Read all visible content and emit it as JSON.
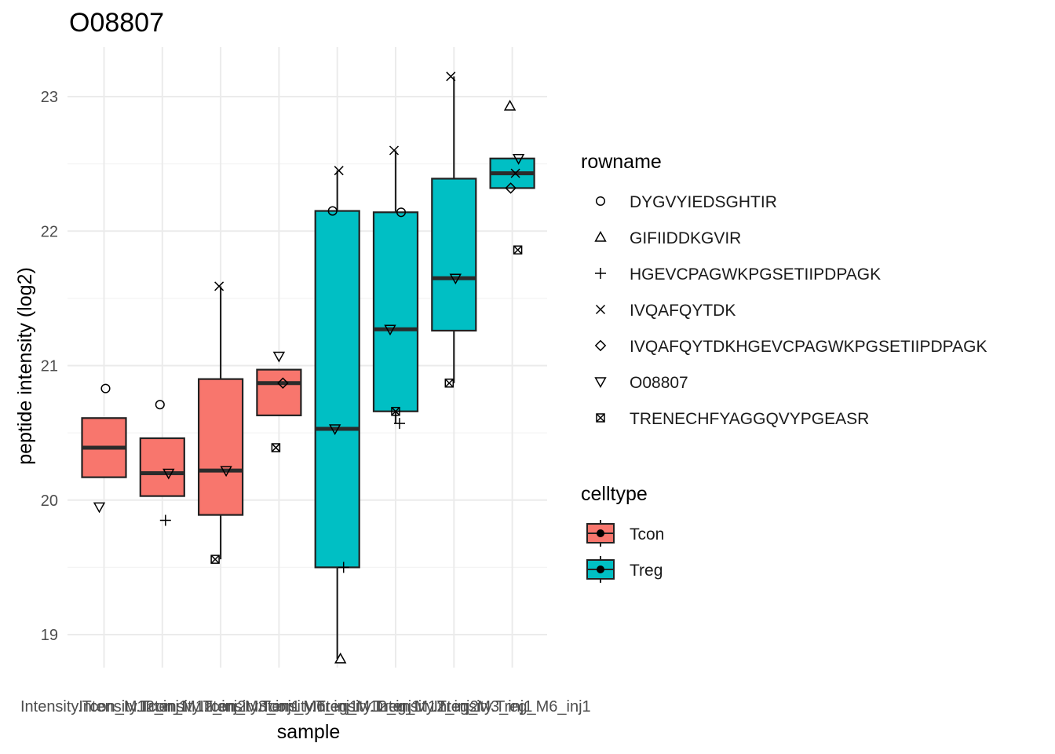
{
  "chart_data": {
    "type": "box",
    "title": "O08807",
    "xlabel": "sample",
    "ylabel": "peptide intensity (log2)",
    "ylim": [
      18.7,
      23.4
    ],
    "yticks": [
      19,
      20,
      21,
      22,
      23
    ],
    "grid": true,
    "categories": [
      "Intensity.Tcon_M12_inj1",
      "Intensity.Tcon_M12_inj2",
      "Intensity.Tcon_M3_inj1",
      "Intensity.Tcon_M6_inj1",
      "Intensity.Treg_M12_inj1",
      "Intensity.Treg_M12_inj2",
      "Intensity.Treg_M3_inj1",
      "Intensity.Treg_M6_inj1"
    ],
    "category_celltype": [
      "Tcon",
      "Tcon",
      "Tcon",
      "Tcon",
      "Treg",
      "Treg",
      "Treg",
      "Treg"
    ],
    "boxes": [
      {
        "lower_whisker": 20.17,
        "q1": 20.17,
        "median": 20.39,
        "q3": 20.61,
        "upper_whisker": 20.61
      },
      {
        "lower_whisker": 20.03,
        "q1": 20.03,
        "median": 20.2,
        "q3": 20.46,
        "upper_whisker": 20.46
      },
      {
        "lower_whisker": 19.56,
        "q1": 19.89,
        "median": 20.22,
        "q3": 20.9,
        "upper_whisker": 21.59
      },
      {
        "lower_whisker": 20.63,
        "q1": 20.63,
        "median": 20.87,
        "q3": 20.97,
        "upper_whisker": 20.97
      },
      {
        "lower_whisker": 18.82,
        "q1": 19.5,
        "median": 20.53,
        "q3": 22.15,
        "upper_whisker": 22.45
      },
      {
        "lower_whisker": 20.57,
        "q1": 20.66,
        "median": 21.27,
        "q3": 22.14,
        "upper_whisker": 22.6
      },
      {
        "lower_whisker": 20.87,
        "q1": 21.26,
        "median": 21.65,
        "q3": 22.39,
        "upper_whisker": 23.15
      },
      {
        "lower_whisker": 22.32,
        "q1": 22.32,
        "median": 22.43,
        "q3": 22.54,
        "upper_whisker": 22.54
      }
    ],
    "points": [
      {
        "sample": 0,
        "rowname": "DYGVYIEDSGHTIR",
        "y": 20.83
      },
      {
        "sample": 0,
        "rowname": "O08807",
        "y": 19.95
      },
      {
        "sample": 1,
        "rowname": "DYGVYIEDSGHTIR",
        "y": 20.71
      },
      {
        "sample": 1,
        "rowname": "O08807",
        "y": 20.2
      },
      {
        "sample": 1,
        "rowname": "HGEVCPAGWKPGSETIIPDPAGK",
        "y": 19.85
      },
      {
        "sample": 2,
        "rowname": "IVQAFQYTDK",
        "y": 21.59
      },
      {
        "sample": 2,
        "rowname": "O08807",
        "y": 20.22
      },
      {
        "sample": 2,
        "rowname": "TRENECHFYAGGQVYPGEASR",
        "y": 19.56
      },
      {
        "sample": 3,
        "rowname": "O08807",
        "y": 21.07
      },
      {
        "sample": 3,
        "rowname": "IVQAFQYTDKHGEVCPAGWKPGSETIIPDPAGK",
        "y": 20.87
      },
      {
        "sample": 3,
        "rowname": "TRENECHFYAGGQVYPGEASR",
        "y": 20.39
      },
      {
        "sample": 4,
        "rowname": "IVQAFQYTDK",
        "y": 22.45
      },
      {
        "sample": 4,
        "rowname": "DYGVYIEDSGHTIR",
        "y": 22.15
      },
      {
        "sample": 4,
        "rowname": "O08807",
        "y": 20.53
      },
      {
        "sample": 4,
        "rowname": "HGEVCPAGWKPGSETIIPDPAGK",
        "y": 19.5
      },
      {
        "sample": 4,
        "rowname": "GIFIIDDKGVIR",
        "y": 18.82
      },
      {
        "sample": 5,
        "rowname": "IVQAFQYTDK",
        "y": 22.6
      },
      {
        "sample": 5,
        "rowname": "DYGVYIEDSGHTIR",
        "y": 22.14
      },
      {
        "sample": 5,
        "rowname": "O08807",
        "y": 21.27
      },
      {
        "sample": 5,
        "rowname": "TRENECHFYAGGQVYPGEASR",
        "y": 20.66
      },
      {
        "sample": 5,
        "rowname": "HGEVCPAGWKPGSETIIPDPAGK",
        "y": 20.57
      },
      {
        "sample": 6,
        "rowname": "IVQAFQYTDK",
        "y": 23.15
      },
      {
        "sample": 6,
        "rowname": "O08807",
        "y": 21.65
      },
      {
        "sample": 6,
        "rowname": "TRENECHFYAGGQVYPGEASR",
        "y": 20.87
      },
      {
        "sample": 7,
        "rowname": "GIFIIDDKGVIR",
        "y": 22.93
      },
      {
        "sample": 7,
        "rowname": "O08807",
        "y": 22.54
      },
      {
        "sample": 7,
        "rowname": "IVQAFQYTDK",
        "y": 22.43
      },
      {
        "sample": 7,
        "rowname": "IVQAFQYTDKHGEVCPAGWKPGSETIIPDPAGK",
        "y": 22.32
      },
      {
        "sample": 7,
        "rowname": "TRENECHFYAGGQVYPGEASR",
        "y": 21.86
      }
    ],
    "legend_rowname": {
      "title": "rowname",
      "entries": [
        {
          "label": "DYGVYIEDSGHTIR",
          "shape": "circle-open"
        },
        {
          "label": "GIFIIDDKGVIR",
          "shape": "triangle-up-open"
        },
        {
          "label": "HGEVCPAGWKPGSETIIPDPAGK",
          "shape": "plus"
        },
        {
          "label": "IVQAFQYTDK",
          "shape": "cross"
        },
        {
          "label": "IVQAFQYTDKHGEVCPAGWKPGSETIIPDPAGK",
          "shape": "diamond-open"
        },
        {
          "label": "O08807",
          "shape": "triangle-down-open"
        },
        {
          "label": "TRENECHFYAGGQVYPGEASR",
          "shape": "square-cross"
        }
      ]
    },
    "legend_celltype": {
      "title": "celltype",
      "entries": [
        {
          "label": "Tcon",
          "color": "#F8766D"
        },
        {
          "label": "Treg",
          "color": "#00BFC4"
        }
      ]
    },
    "legend_placement": "right"
  }
}
